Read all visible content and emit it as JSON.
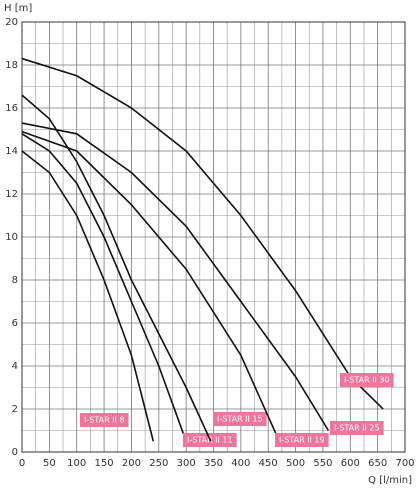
{
  "chart_data": {
    "type": "line",
    "y_label": "H [m]",
    "x_label": "Q [l/min]",
    "xlim": [
      0,
      700
    ],
    "xticks": [
      0,
      50,
      100,
      150,
      200,
      250,
      300,
      350,
      400,
      450,
      500,
      550,
      600,
      650,
      700
    ],
    "ylim": [
      0,
      20
    ],
    "yticks": [
      0,
      2,
      4,
      6,
      8,
      10,
      12,
      14,
      16,
      18,
      20
    ],
    "grid": true,
    "minor_grid": true,
    "label_color": "#f0759a",
    "series": [
      {
        "name": "I-STAR II 8",
        "color": "#111111",
        "x": [
          0,
          50,
          100,
          150,
          200,
          240
        ],
        "values": [
          14,
          13,
          11,
          8,
          4.5,
          0.5
        ]
      },
      {
        "name": "I-STAR II 11",
        "color": "#111111",
        "x": [
          0,
          50,
          100,
          150,
          200,
          250,
          300
        ],
        "values": [
          14.8,
          14,
          12.5,
          10,
          7,
          4,
          0.5
        ]
      },
      {
        "name": "I-STAR II 15",
        "color": "#111111",
        "x": [
          0,
          50,
          100,
          150,
          200,
          250,
          300,
          345
        ],
        "values": [
          16.6,
          15.5,
          13.5,
          11,
          8,
          5.5,
          3,
          0.5
        ]
      },
      {
        "name": "I-STAR II 19",
        "color": "#111111",
        "x": [
          0,
          100,
          200,
          300,
          400,
          465
        ],
        "values": [
          14.9,
          14,
          11.5,
          8.5,
          4.5,
          0.8
        ]
      },
      {
        "name": "I-STAR II 25",
        "color": "#111111",
        "x": [
          0,
          100,
          200,
          300,
          400,
          500,
          560
        ],
        "values": [
          15.3,
          14.8,
          13,
          10.5,
          7,
          3.5,
          1
        ]
      },
      {
        "name": "I-STAR II 30",
        "color": "#111111",
        "x": [
          0,
          100,
          200,
          300,
          400,
          500,
          600,
          660
        ],
        "values": [
          18.3,
          17.5,
          16,
          14,
          11,
          7.5,
          3.5,
          2
        ]
      }
    ]
  }
}
